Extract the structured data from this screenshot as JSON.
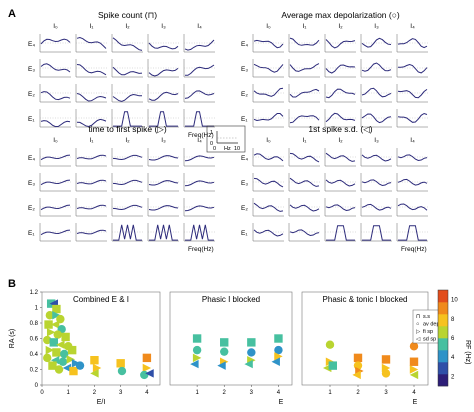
{
  "panel_A": {
    "label": "A",
    "blocks": [
      {
        "title": "Spike count",
        "symbol": "(⊓)",
        "cols": [
          "I₀",
          "I₁",
          "I₂",
          "I₃",
          "I₄"
        ],
        "rows": [
          "E₄",
          "E₃",
          "E₂",
          "E₁"
        ],
        "xlabel": "Freq(Hz)",
        "shape": "count"
      },
      {
        "title": "Average max depolarization",
        "symbol": "(○)",
        "cols": [
          "I₀",
          "I₁",
          "I₂",
          "I₃",
          "I₄"
        ],
        "rows": [
          "E₄",
          "E₃",
          "E₂",
          "E₁"
        ],
        "xlabel": "",
        "shape": "depol"
      },
      {
        "title": "time to first spike",
        "symbol": "(▷)",
        "cols": [
          "I₀",
          "I₁",
          "I₂",
          "I₃",
          "I₄"
        ],
        "rows": [
          "E₄",
          "E₃",
          "E₂",
          "E₁"
        ],
        "xlabel": "Freq(Hz)",
        "shape": "latency"
      },
      {
        "title": "1st spike s.d.",
        "symbol": "(◁)",
        "cols": [
          "I₀",
          "I₁",
          "I₂",
          "I₃",
          "I₄"
        ],
        "rows": [
          "E₄",
          "E₃",
          "E₂",
          "E₁"
        ],
        "xlabel": "Freq(Hz)",
        "shape": "sd"
      }
    ],
    "scale_inset": {
      "y_top": "1",
      "y_bottom": "0",
      "x_left": "0",
      "x_unit": "Hz",
      "x_right": "10"
    }
  },
  "panel_B": {
    "label": "B",
    "ylabel": "RA (s)",
    "yticks": [
      "0",
      "0.2",
      "0.4",
      "0.6",
      "0.8",
      "1",
      "1.2"
    ],
    "colorbar": {
      "label": "RF (Hz)",
      "ticks": [
        "2",
        "4",
        "6",
        "8",
        "10"
      ],
      "colors": [
        "#2d1e78",
        "#2f4fa8",
        "#2f93c8",
        "#47c0a0",
        "#b9d430",
        "#f6c21f",
        "#f08a1c",
        "#e24d1c"
      ]
    },
    "legend": [
      {
        "symbol": "⊓",
        "label": "s.s"
      },
      {
        "symbol": "○",
        "label": "av dep"
      },
      {
        "symbol": "▷",
        "label": "fi sp"
      },
      {
        "symbol": "◁",
        "label": "sd sp"
      }
    ]
  },
  "chart_data": [
    {
      "type": "scatter",
      "title": "Combined E & I",
      "xlabel": "E/I",
      "ylabel": "RA (s)",
      "xlim": [
        0,
        4.5
      ],
      "ylim": [
        0,
        1.2
      ],
      "xticks": [
        "0",
        "1",
        "2",
        "3",
        "4"
      ],
      "points": [
        {
          "x": 0.35,
          "y": 1.05,
          "m": "sq",
          "c": 3
        },
        {
          "x": 0.45,
          "y": 1.05,
          "m": "tl",
          "c": 1
        },
        {
          "x": 0.55,
          "y": 0.98,
          "m": "sq",
          "c": 4
        },
        {
          "x": 0.3,
          "y": 0.9,
          "m": "ci",
          "c": 4
        },
        {
          "x": 0.55,
          "y": 0.9,
          "m": "tr",
          "c": 3
        },
        {
          "x": 0.7,
          "y": 0.85,
          "m": "ci",
          "c": 4
        },
        {
          "x": 0.25,
          "y": 0.78,
          "m": "sq",
          "c": 4
        },
        {
          "x": 0.5,
          "y": 0.78,
          "m": "tl",
          "c": 4
        },
        {
          "x": 0.75,
          "y": 0.72,
          "m": "ci",
          "c": 3
        },
        {
          "x": 0.35,
          "y": 0.68,
          "m": "tr",
          "c": 4
        },
        {
          "x": 0.6,
          "y": 0.65,
          "m": "ci",
          "c": 4
        },
        {
          "x": 0.9,
          "y": 0.62,
          "m": "sq",
          "c": 4
        },
        {
          "x": 0.2,
          "y": 0.58,
          "m": "ci",
          "c": 4
        },
        {
          "x": 0.45,
          "y": 0.55,
          "m": "sq",
          "c": 3
        },
        {
          "x": 0.7,
          "y": 0.52,
          "m": "tl",
          "c": 4
        },
        {
          "x": 1.0,
          "y": 0.5,
          "m": "ci",
          "c": 4
        },
        {
          "x": 0.3,
          "y": 0.45,
          "m": "tr",
          "c": 4
        },
        {
          "x": 0.55,
          "y": 0.42,
          "m": "sq",
          "c": 4
        },
        {
          "x": 0.85,
          "y": 0.4,
          "m": "ci",
          "c": 3
        },
        {
          "x": 1.15,
          "y": 0.45,
          "m": "sq",
          "c": 4
        },
        {
          "x": 0.2,
          "y": 0.35,
          "m": "ci",
          "c": 4
        },
        {
          "x": 0.5,
          "y": 0.32,
          "m": "tl",
          "c": 3
        },
        {
          "x": 0.8,
          "y": 0.3,
          "m": "ci",
          "c": 3
        },
        {
          "x": 1.1,
          "y": 0.33,
          "m": "tr",
          "c": 4
        },
        {
          "x": 0.4,
          "y": 0.25,
          "m": "sq",
          "c": 4
        },
        {
          "x": 0.95,
          "y": 0.22,
          "m": "tl",
          "c": 2
        },
        {
          "x": 1.3,
          "y": 0.28,
          "m": "tr",
          "c": 2
        },
        {
          "x": 1.2,
          "y": 0.18,
          "m": "sq",
          "c": 5
        },
        {
          "x": 0.65,
          "y": 0.2,
          "m": "ci",
          "c": 4
        },
        {
          "x": 1.45,
          "y": 0.25,
          "m": "ci",
          "c": 2
        },
        {
          "x": 2.0,
          "y": 0.32,
          "m": "sq",
          "c": 5
        },
        {
          "x": 2.1,
          "y": 0.22,
          "m": "tr",
          "c": 5
        },
        {
          "x": 2.0,
          "y": 0.15,
          "m": "tl",
          "c": 4
        },
        {
          "x": 3.0,
          "y": 0.28,
          "m": "sq",
          "c": 5
        },
        {
          "x": 3.05,
          "y": 0.18,
          "m": "ci",
          "c": 3
        },
        {
          "x": 4.0,
          "y": 0.35,
          "m": "sq",
          "c": 6
        },
        {
          "x": 4.0,
          "y": 0.22,
          "m": "tr",
          "c": 5
        },
        {
          "x": 3.9,
          "y": 0.13,
          "m": "ci",
          "c": 3
        },
        {
          "x": 4.1,
          "y": 0.15,
          "m": "tl",
          "c": 1
        }
      ]
    },
    {
      "type": "scatter",
      "title": "Phasic I blocked",
      "xlabel": "E",
      "xlim": [
        0,
        4.5
      ],
      "ylim": [
        0,
        1.2
      ],
      "xticks": [
        "1",
        "2",
        "3",
        "4"
      ],
      "points": [
        {
          "x": 1.0,
          "y": 0.6,
          "m": "sq",
          "c": 3
        },
        {
          "x": 1.0,
          "y": 0.45,
          "m": "ci",
          "c": 3
        },
        {
          "x": 1.0,
          "y": 0.35,
          "m": "tr",
          "c": 4
        },
        {
          "x": 0.9,
          "y": 0.27,
          "m": "tl",
          "c": 2
        },
        {
          "x": 2.0,
          "y": 0.55,
          "m": "sq",
          "c": 3
        },
        {
          "x": 2.0,
          "y": 0.43,
          "m": "ci",
          "c": 3
        },
        {
          "x": 2.0,
          "y": 0.3,
          "m": "tr",
          "c": 5
        },
        {
          "x": 1.9,
          "y": 0.25,
          "m": "tl",
          "c": 2
        },
        {
          "x": 3.0,
          "y": 0.55,
          "m": "sq",
          "c": 3
        },
        {
          "x": 3.0,
          "y": 0.42,
          "m": "ci",
          "c": 2
        },
        {
          "x": 3.0,
          "y": 0.32,
          "m": "tr",
          "c": 4
        },
        {
          "x": 2.9,
          "y": 0.27,
          "m": "tl",
          "c": 3
        },
        {
          "x": 4.0,
          "y": 0.6,
          "m": "sq",
          "c": 3
        },
        {
          "x": 4.0,
          "y": 0.45,
          "m": "ci",
          "c": 2
        },
        {
          "x": 4.0,
          "y": 0.37,
          "m": "tr",
          "c": 5
        },
        {
          "x": 3.9,
          "y": 0.3,
          "m": "tl",
          "c": 2
        }
      ]
    },
    {
      "type": "scatter",
      "title": "Phasic & tonic I blocked",
      "xlabel": "E",
      "xlim": [
        0,
        4.5
      ],
      "ylim": [
        0,
        1.2
      ],
      "xticks": [
        "1",
        "2",
        "3",
        "4"
      ],
      "points": [
        {
          "x": 1.0,
          "y": 0.52,
          "m": "ci",
          "c": 4
        },
        {
          "x": 1.0,
          "y": 0.3,
          "m": "tr",
          "c": 5
        },
        {
          "x": 0.9,
          "y": 0.22,
          "m": "tl",
          "c": 4
        },
        {
          "x": 1.1,
          "y": 0.25,
          "m": "sq",
          "c": 3
        },
        {
          "x": 2.0,
          "y": 0.35,
          "m": "sq",
          "c": 6
        },
        {
          "x": 2.0,
          "y": 0.25,
          "m": "ci",
          "c": 5
        },
        {
          "x": 2.05,
          "y": 0.18,
          "m": "tr",
          "c": 6
        },
        {
          "x": 1.95,
          "y": 0.13,
          "m": "tl",
          "c": 5
        },
        {
          "x": 3.0,
          "y": 0.33,
          "m": "sq",
          "c": 6
        },
        {
          "x": 3.0,
          "y": 0.22,
          "m": "tr",
          "c": 5
        },
        {
          "x": 3.0,
          "y": 0.15,
          "m": "ci",
          "c": 5
        },
        {
          "x": 4.0,
          "y": 0.5,
          "m": "ci",
          "c": 6
        },
        {
          "x": 4.0,
          "y": 0.3,
          "m": "sq",
          "c": 6
        },
        {
          "x": 4.0,
          "y": 0.2,
          "m": "tr",
          "c": 5
        },
        {
          "x": 4.0,
          "y": 0.13,
          "m": "tl",
          "c": 4
        }
      ]
    }
  ]
}
